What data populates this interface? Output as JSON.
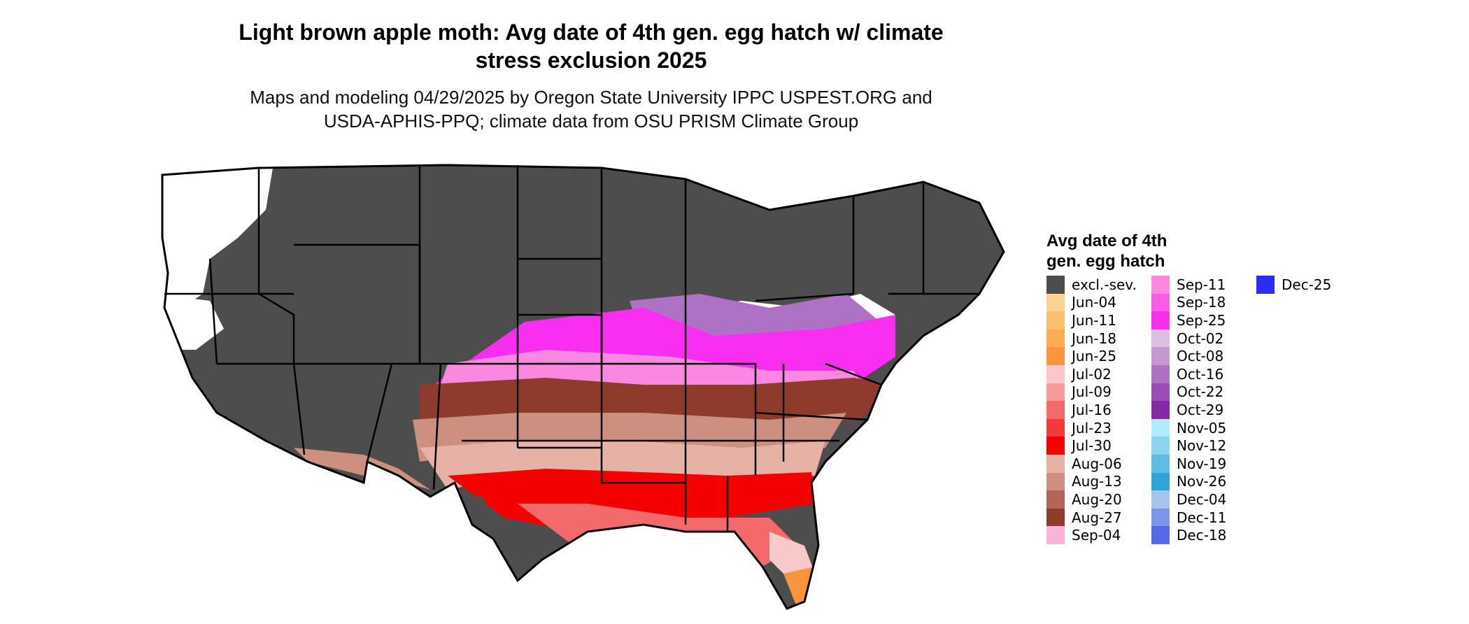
{
  "title": "Light brown apple moth: Avg date of 4th gen. egg hatch w/ climate\nstress exclusion 2025",
  "subtitle": "Maps and modeling 04/29/2025 by Oregon State University IPPC USPEST.ORG and\nUSDA-APHIS-PPQ; climate data from OSU PRISM Climate Group",
  "legend": {
    "title": "Avg date of 4th\ngen. egg hatch",
    "columns": [
      [
        {
          "label": "excl.-sev.",
          "color": "#4d4d4d"
        },
        {
          "label": "Jun-04",
          "color": "#fdd38d"
        },
        {
          "label": "Jun-11",
          "color": "#fcbf72"
        },
        {
          "label": "Jun-18",
          "color": "#fcab57"
        },
        {
          "label": "Jun-25",
          "color": "#fb943c"
        },
        {
          "label": "Jul-02",
          "color": "#f9c9c9"
        },
        {
          "label": "Jul-09",
          "color": "#f79a9a"
        },
        {
          "label": "Jul-16",
          "color": "#f46a6a"
        },
        {
          "label": "Jul-23",
          "color": "#f33a3a"
        },
        {
          "label": "Jul-30",
          "color": "#f40000"
        },
        {
          "label": "Aug-06",
          "color": "#e6b2a6"
        },
        {
          "label": "Aug-13",
          "color": "#cc8f80"
        },
        {
          "label": "Aug-20",
          "color": "#b06658"
        },
        {
          "label": "Aug-27",
          "color": "#8f3b2c"
        },
        {
          "label": "Sep-04",
          "color": "#fbb3d9"
        }
      ],
      [
        {
          "label": "Sep-11",
          "color": "#fb88e0"
        },
        {
          "label": "Sep-18",
          "color": "#fa5be8"
        },
        {
          "label": "Sep-25",
          "color": "#f92ef1"
        },
        {
          "label": "Oct-02",
          "color": "#dcbfe0"
        },
        {
          "label": "Oct-08",
          "color": "#c598d2"
        },
        {
          "label": "Oct-16",
          "color": "#ad72c3"
        },
        {
          "label": "Oct-22",
          "color": "#9a4db5"
        },
        {
          "label": "Oct-29",
          "color": "#8628a6"
        },
        {
          "label": "Nov-05",
          "color": "#b0ecfc"
        },
        {
          "label": "Nov-12",
          "color": "#8ad6f0"
        },
        {
          "label": "Nov-19",
          "color": "#5fbde3"
        },
        {
          "label": "Nov-26",
          "color": "#30a5d4"
        },
        {
          "label": "Dec-04",
          "color": "#a9c2ee"
        },
        {
          "label": "Dec-11",
          "color": "#7e96ea"
        },
        {
          "label": "Dec-18",
          "color": "#5768ea"
        }
      ],
      [
        {
          "label": "Dec-25",
          "color": "#2b2ef1"
        }
      ]
    ]
  }
}
